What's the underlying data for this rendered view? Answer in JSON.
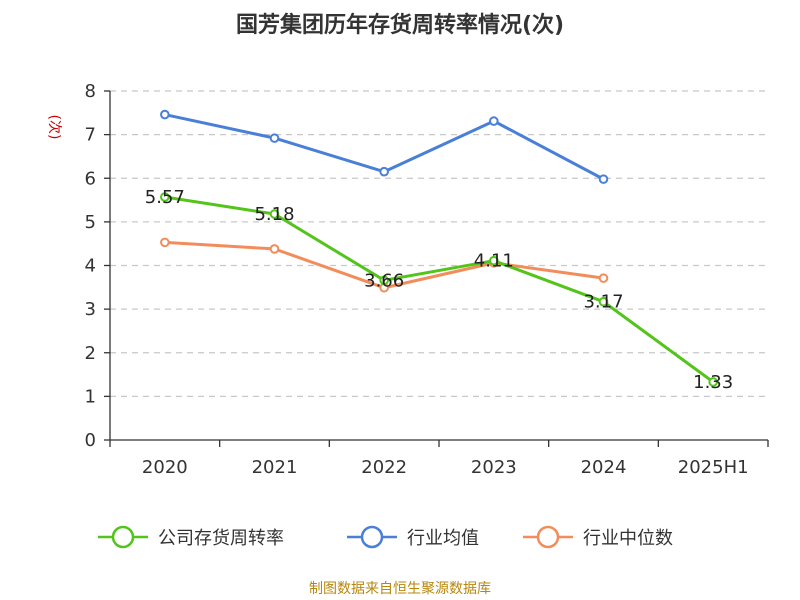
{
  "chart_data": {
    "type": "line",
    "title": "国芳集团历年存货周转率情况(次)",
    "ylabel": "(次)",
    "xlabel": "",
    "categories": [
      "2020",
      "2021",
      "2022",
      "2023",
      "2024",
      "2025H1"
    ],
    "ylim": [
      0,
      8
    ],
    "yticks": [
      0,
      1,
      2,
      3,
      4,
      5,
      6,
      7,
      8
    ],
    "grid": true,
    "legend_position": "bottom",
    "series": [
      {
        "name": "公司存货周转率",
        "color": "#52c41a",
        "values": [
          5.57,
          5.18,
          3.66,
          4.11,
          3.17,
          1.33
        ],
        "data_labels": [
          "5.57",
          "5.18",
          "3.66",
          "4.11",
          "3.17",
          "1.33"
        ]
      },
      {
        "name": "行业均值",
        "color": "#4a7fd8",
        "values": [
          7.46,
          6.92,
          6.15,
          7.31,
          5.98,
          null
        ]
      },
      {
        "name": "行业中位数",
        "color": "#f28d5b",
        "values": [
          4.53,
          4.38,
          3.49,
          4.06,
          3.71,
          null
        ]
      }
    ]
  },
  "source": "制图数据来自恒生聚源数据库"
}
